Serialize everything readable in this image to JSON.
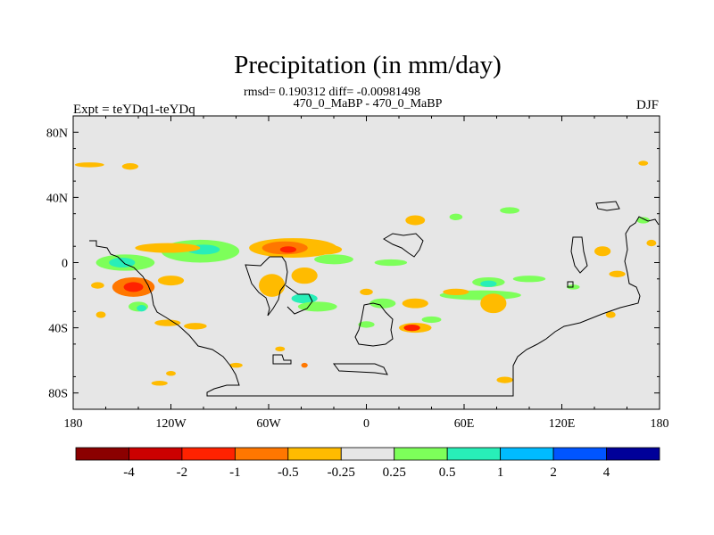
{
  "chart_data": {
    "type": "heatmap",
    "title": "Precipitation (in mm/day)",
    "subtitle_stats": "rmsd= 0.190312 diff= -0.00981498",
    "subtitle_runs": "470_0_MaBP - 470_0_MaBP",
    "left_label": "Expt = teYDq1-teYDq",
    "right_label": "DJF",
    "x_ticks": [
      {
        "value": -180,
        "label": "180"
      },
      {
        "value": -120,
        "label": "120W"
      },
      {
        "value": -60,
        "label": "60W"
      },
      {
        "value": 0,
        "label": "0"
      },
      {
        "value": 60,
        "label": "60E"
      },
      {
        "value": 120,
        "label": "120E"
      },
      {
        "value": 180,
        "label": "180"
      }
    ],
    "y_ticks": [
      {
        "value": 80,
        "label": "80N"
      },
      {
        "value": 40,
        "label": "40N"
      },
      {
        "value": 0,
        "label": "0"
      },
      {
        "value": -40,
        "label": "40S"
      },
      {
        "value": -80,
        "label": "80S"
      }
    ],
    "xlim": [
      -180,
      180
    ],
    "ylim": [
      -90,
      90
    ],
    "background_value": 0,
    "colorbar": {
      "colors": [
        "#8b0000",
        "#cc0000",
        "#ff2200",
        "#ff7700",
        "#ffbb00",
        "#e6e6e6",
        "#7dff5a",
        "#28eeb8",
        "#00bbff",
        "#0055ff",
        "#000099"
      ],
      "labels": [
        "-4",
        "-2",
        "-1",
        "-0.5",
        "-0.25",
        "0.25",
        "0.5",
        "1",
        "2",
        "4"
      ]
    },
    "anomaly_regions": [
      {
        "lon": -102,
        "lat": 7,
        "rx": 24,
        "ry": 7,
        "value": 0.3
      },
      {
        "lon": -100,
        "lat": 8,
        "rx": 10,
        "ry": 3,
        "value": 0.7
      },
      {
        "lon": -148,
        "lat": 0,
        "rx": 18,
        "ry": 5,
        "value": 0.3
      },
      {
        "lon": -150,
        "lat": 0,
        "rx": 8,
        "ry": 3,
        "value": 0.7
      },
      {
        "lon": -122,
        "lat": 9,
        "rx": 20,
        "ry": 3,
        "value": -0.3
      },
      {
        "lon": -143,
        "lat": -15,
        "rx": 13,
        "ry": 6,
        "value": -0.6
      },
      {
        "lon": -143,
        "lat": -15,
        "rx": 6,
        "ry": 3,
        "value": -1.5
      },
      {
        "lon": -120,
        "lat": -11,
        "rx": 8,
        "ry": 3,
        "value": -0.3
      },
      {
        "lon": -165,
        "lat": -14,
        "rx": 4,
        "ry": 2,
        "value": -0.3
      },
      {
        "lon": -140,
        "lat": -27,
        "rx": 6,
        "ry": 3,
        "value": 0.3
      },
      {
        "lon": -138,
        "lat": -28,
        "rx": 3,
        "ry": 2,
        "value": 0.7
      },
      {
        "lon": -163,
        "lat": -32,
        "rx": 3,
        "ry": 2,
        "value": -0.3
      },
      {
        "lon": -122,
        "lat": -37,
        "rx": 8,
        "ry": 2,
        "value": -0.3
      },
      {
        "lon": -105,
        "lat": -39,
        "rx": 7,
        "ry": 2,
        "value": -0.3
      },
      {
        "lon": -120,
        "lat": -68,
        "rx": 3,
        "ry": 1.5,
        "value": -0.3
      },
      {
        "lon": -127,
        "lat": -74,
        "rx": 5,
        "ry": 1.5,
        "value": -0.3
      },
      {
        "lon": -80,
        "lat": -63,
        "rx": 4,
        "ry": 1.5,
        "value": -0.3
      },
      {
        "lon": -45,
        "lat": 9,
        "rx": 27,
        "ry": 6,
        "value": -0.4
      },
      {
        "lon": -50,
        "lat": 9,
        "rx": 14,
        "ry": 4,
        "value": -0.7
      },
      {
        "lon": -48,
        "lat": 8,
        "rx": 5,
        "ry": 2,
        "value": -1.5
      },
      {
        "lon": -25,
        "lat": 8,
        "rx": 10,
        "ry": 3,
        "value": -0.3
      },
      {
        "lon": -20,
        "lat": 2,
        "rx": 12,
        "ry": 3,
        "value": 0.3
      },
      {
        "lon": -38,
        "lat": -22,
        "rx": 8,
        "ry": 3,
        "value": 0.7
      },
      {
        "lon": -38,
        "lat": -8,
        "rx": 8,
        "ry": 5,
        "value": -0.3
      },
      {
        "lon": -58,
        "lat": -14,
        "rx": 8,
        "ry": 7,
        "value": -0.3
      },
      {
        "lon": -30,
        "lat": -27,
        "rx": 12,
        "ry": 3,
        "value": 0.3
      },
      {
        "lon": -53,
        "lat": -53,
        "rx": 3,
        "ry": 1.5,
        "value": -0.3
      },
      {
        "lon": -38,
        "lat": -63,
        "rx": 2,
        "ry": 1.5,
        "value": -0.6
      },
      {
        "lon": 15,
        "lat": 0,
        "rx": 10,
        "ry": 2,
        "value": 0.3
      },
      {
        "lon": 30,
        "lat": 26,
        "rx": 6,
        "ry": 3,
        "value": -0.3
      },
      {
        "lon": 55,
        "lat": 28,
        "rx": 4,
        "ry": 2,
        "value": 0.3
      },
      {
        "lon": 88,
        "lat": 32,
        "rx": 6,
        "ry": 2,
        "value": 0.3
      },
      {
        "lon": 0,
        "lat": -18,
        "rx": 4,
        "ry": 2,
        "value": -0.3
      },
      {
        "lon": 10,
        "lat": -25,
        "rx": 8,
        "ry": 3,
        "value": 0.3
      },
      {
        "lon": 30,
        "lat": -25,
        "rx": 8,
        "ry": 3,
        "value": -0.3
      },
      {
        "lon": 30,
        "lat": -40,
        "rx": 10,
        "ry": 3,
        "value": -0.4
      },
      {
        "lon": 28,
        "lat": -40,
        "rx": 5,
        "ry": 2,
        "value": -1.2
      },
      {
        "lon": 0,
        "lat": -38,
        "rx": 5,
        "ry": 2,
        "value": 0.3
      },
      {
        "lon": 40,
        "lat": -35,
        "rx": 6,
        "ry": 2,
        "value": 0.3
      },
      {
        "lon": 70,
        "lat": -20,
        "rx": 25,
        "ry": 3,
        "value": 0.3
      },
      {
        "lon": 75,
        "lat": -12,
        "rx": 10,
        "ry": 3,
        "value": 0.3
      },
      {
        "lon": 75,
        "lat": -13,
        "rx": 5,
        "ry": 2,
        "value": 0.7
      },
      {
        "lon": 55,
        "lat": -18,
        "rx": 8,
        "ry": 2,
        "value": -0.3
      },
      {
        "lon": 78,
        "lat": -25,
        "rx": 8,
        "ry": 6,
        "value": -0.3
      },
      {
        "lon": 100,
        "lat": -10,
        "rx": 10,
        "ry": 2,
        "value": 0.3
      },
      {
        "lon": 85,
        "lat": -72,
        "rx": 5,
        "ry": 2,
        "value": -0.3
      },
      {
        "lon": 145,
        "lat": 7,
        "rx": 5,
        "ry": 3,
        "value": -0.3
      },
      {
        "lon": 154,
        "lat": -7,
        "rx": 5,
        "ry": 2,
        "value": -0.3
      },
      {
        "lon": 150,
        "lat": -32,
        "rx": 3,
        "ry": 2,
        "value": -0.3
      },
      {
        "lon": 127,
        "lat": -15,
        "rx": 4,
        "ry": 1.5,
        "value": 0.3
      },
      {
        "lon": 170,
        "lat": 26,
        "rx": 4,
        "ry": 2,
        "value": 0.3
      },
      {
        "lon": 175,
        "lat": 12,
        "rx": 3,
        "ry": 2,
        "value": -0.3
      },
      {
        "lon": -170,
        "lat": 60,
        "rx": 9,
        "ry": 1.5,
        "value": -0.3
      },
      {
        "lon": -145,
        "lat": 59,
        "rx": 5,
        "ry": 2,
        "value": -0.3
      },
      {
        "lon": 170,
        "lat": 61,
        "rx": 3,
        "ry": 1.5,
        "value": -0.3
      }
    ]
  }
}
